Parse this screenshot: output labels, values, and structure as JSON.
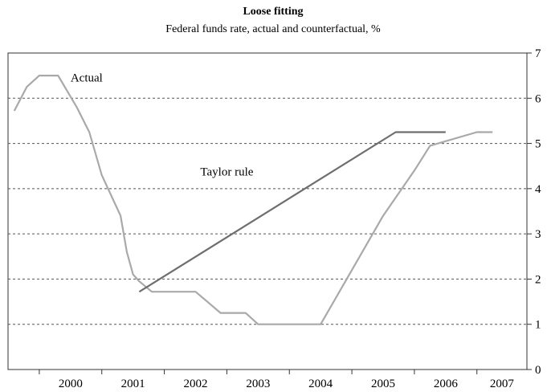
{
  "chart_data": {
    "type": "line",
    "title": "Loose fitting",
    "subtitle": "Federal funds rate, actual and counterfactual, %",
    "xlabel": "",
    "ylabel": "",
    "xlim": [
      1999.5,
      2007.8
    ],
    "ylim": [
      0,
      7
    ],
    "x_tick_labels": [
      "2000",
      "2001",
      "2002",
      "2003",
      "2004",
      "2005",
      "2006",
      "2007"
    ],
    "y_tick_labels": [
      "0",
      "1",
      "2",
      "3",
      "4",
      "5",
      "6",
      "7"
    ],
    "grid": "horizontal dashed",
    "y_axis_side": "right",
    "colors": {
      "actual": "#a9a9a9",
      "taylor": "#6e6e6e",
      "grid": "#555555",
      "axis": "#333333"
    },
    "series": [
      {
        "name": "Actual",
        "x": [
          1999.6,
          1999.8,
          2000.0,
          2000.3,
          2000.6,
          2000.8,
          2001.0,
          2001.3,
          2001.4,
          2001.5,
          2001.6,
          2001.8,
          2002.0,
          2002.5,
          2002.9,
          2003.3,
          2003.5,
          2003.75,
          2004.0,
          2004.25,
          2004.5,
          2005.0,
          2005.5,
          2006.0,
          2006.25,
          2007.0,
          2007.25
        ],
        "values": [
          5.72,
          6.25,
          6.5,
          6.5,
          5.8,
          5.25,
          4.3,
          3.4,
          2.6,
          2.1,
          1.95,
          1.72,
          1.72,
          1.72,
          1.25,
          1.25,
          1.0,
          1.0,
          1.0,
          1.0,
          1.0,
          2.2,
          3.4,
          4.4,
          4.95,
          5.25,
          5.25
        ]
      },
      {
        "name": "Taylor rule",
        "x": [
          2001.6,
          2005.7,
          2006.5
        ],
        "values": [
          1.72,
          5.25,
          5.25
        ]
      }
    ]
  }
}
